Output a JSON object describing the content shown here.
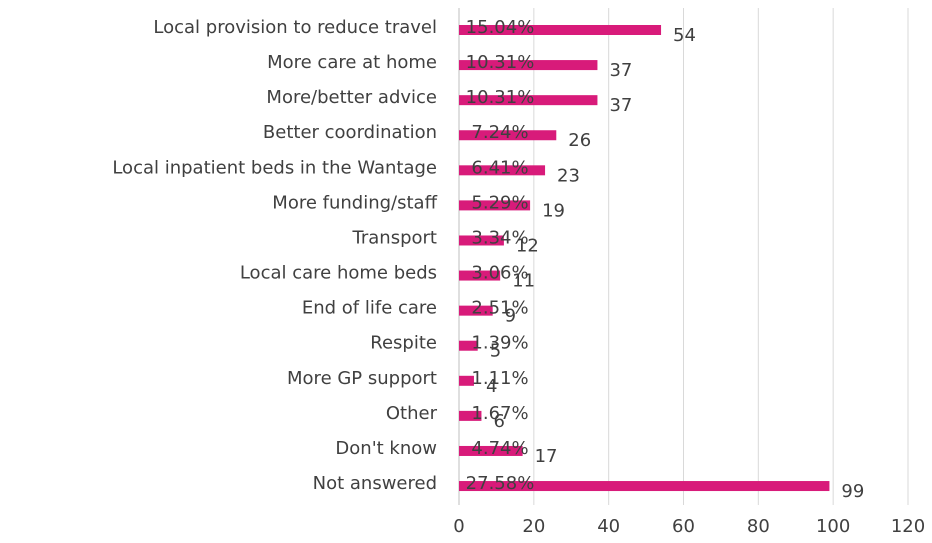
{
  "chart_data": {
    "type": "bar",
    "orientation": "horizontal",
    "categories": [
      "Local provision to reduce travel",
      "More care at home",
      "More/better advice",
      "Better coordination",
      "Local inpatient beds in the Wantage",
      "More funding/staff",
      "Transport",
      "Local care home beds",
      "End of life care",
      "Respite",
      "More GP support",
      "Other",
      "Don't know",
      "Not answered"
    ],
    "values": [
      54,
      37,
      37,
      26,
      23,
      19,
      12,
      11,
      9,
      5,
      4,
      6,
      17,
      99
    ],
    "percent_labels": [
      "15.04%",
      "10.31%",
      "10.31%",
      "7.24%",
      "6.41%",
      "5.29%",
      "3.34%",
      "3.06%",
      "2.51%",
      "1.39%",
      "1.11%",
      "1.67%",
      "4.74%",
      "27.58%"
    ],
    "color": "#d81b7a",
    "xlim": [
      0,
      120
    ],
    "xticks": [
      0,
      20,
      40,
      60,
      80,
      100,
      120
    ],
    "grid": true
  }
}
